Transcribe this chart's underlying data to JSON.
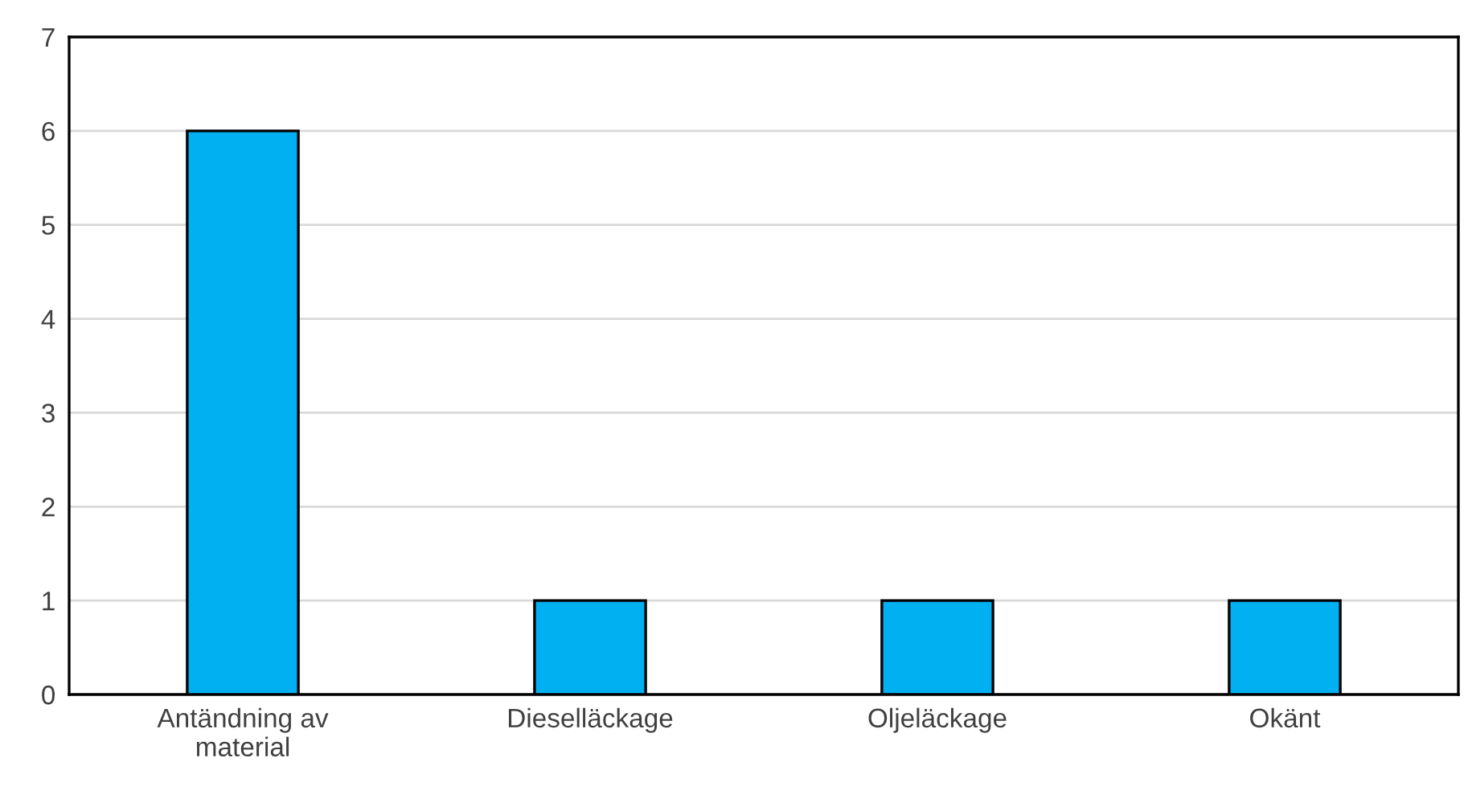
{
  "chart_data": {
    "type": "bar",
    "categories": [
      "Antändning av\nmaterial",
      "Dieselläckage",
      "Oljeläckage",
      "Okänt"
    ],
    "values": [
      6,
      1,
      1,
      1
    ],
    "color": "#00b0f0",
    "ylim": [
      0,
      7
    ],
    "yticks": [
      0,
      1,
      2,
      3,
      4,
      5,
      6,
      7
    ],
    "grid": "y",
    "legend": false
  }
}
